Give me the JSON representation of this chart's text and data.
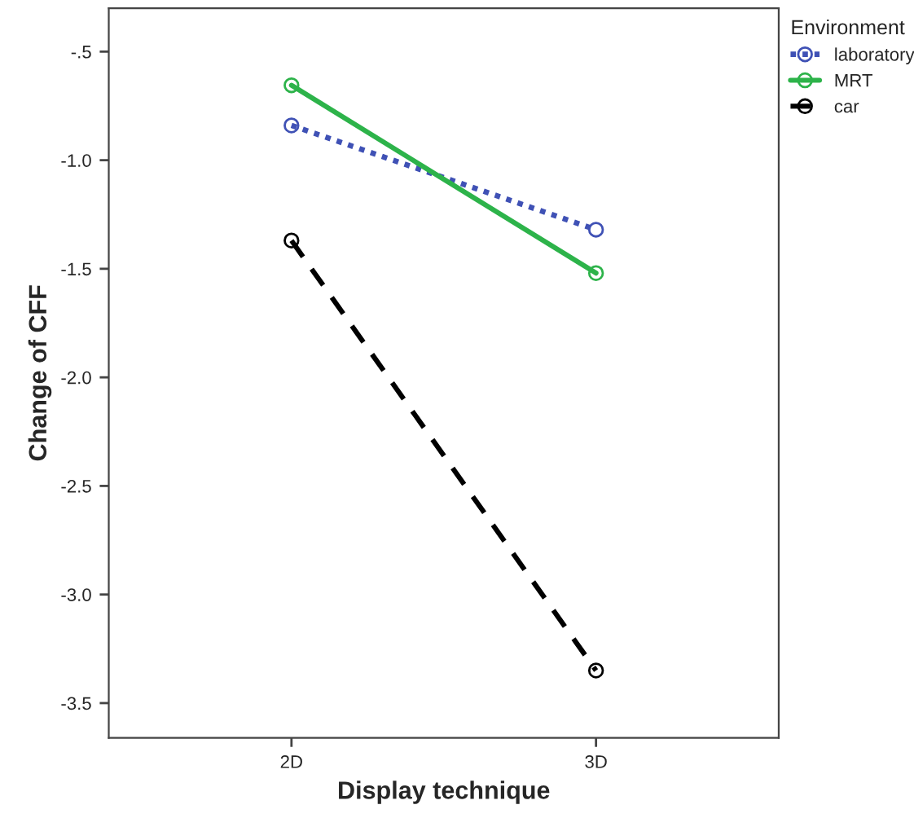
{
  "chart_data": {
    "type": "line",
    "xlabel": "Display technique",
    "ylabel": "Change of CFF",
    "legend_title": "Environment",
    "legend": "top right",
    "marker": "circle",
    "grid": false,
    "categories": [
      "2D",
      "3D"
    ],
    "ylim": [
      -3.66,
      -0.3
    ],
    "yticks": [
      {
        "value": -0.5,
        "label": "-.5"
      },
      {
        "value": -1.0,
        "label": "-1.0"
      },
      {
        "value": -1.5,
        "label": "-1.5"
      },
      {
        "value": -2.0,
        "label": "-2.0"
      },
      {
        "value": -2.5,
        "label": "-2.5"
      },
      {
        "value": -3.0,
        "label": "-3.0"
      },
      {
        "value": -3.5,
        "label": "-3.5"
      }
    ],
    "series": [
      {
        "name": "laboratory",
        "color": "#3f51b5",
        "line_style": "dotted",
        "values": [
          -0.84,
          -1.32
        ]
      },
      {
        "name": "MRT",
        "color": "#2db34a",
        "line_style": "solid",
        "values": [
          -0.655,
          -1.52
        ]
      },
      {
        "name": "car",
        "color": "#000000",
        "line_style": "dashed",
        "values": [
          -1.37,
          -3.35
        ]
      }
    ]
  }
}
